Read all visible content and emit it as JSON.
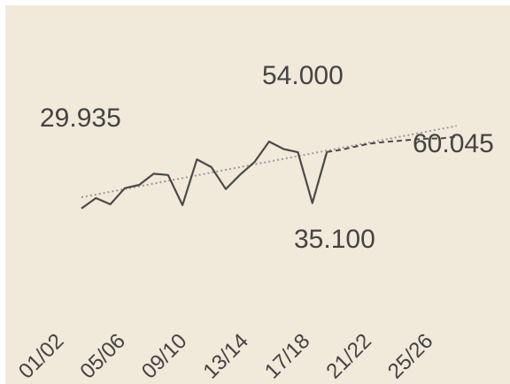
{
  "chart_data": {
    "type": "line",
    "title": "",
    "xlabel": "",
    "ylabel": "",
    "ylim": [
      20000,
      80000
    ],
    "grid": false,
    "legend": "none",
    "x_tick_labels": [
      "01/02",
      "05/06",
      "09/10",
      "13/14",
      "17/18",
      "21/22",
      "25/26"
    ],
    "series": [
      {
        "style": "solid",
        "color": "#4a4a4a",
        "x": [
          1,
          2,
          3,
          4,
          5,
          6,
          7,
          8,
          9,
          10,
          11,
          12,
          13,
          14,
          15,
          16,
          17,
          18
        ],
        "values": [
          33800,
          36300,
          34800,
          38700,
          39500,
          42200,
          41900,
          34600,
          45700,
          43800,
          38500,
          42000,
          45100,
          50000,
          48200,
          47400,
          35100,
          47400
        ]
      },
      {
        "style": "dashed",
        "color": "#4a4a4a",
        "x": [
          17,
          18,
          19,
          20,
          21,
          22,
          23,
          24,
          25,
          26,
          27
        ],
        "values": [
          35100,
          47500,
          48000,
          48800,
          49500,
          49900,
          50200,
          50500,
          50700,
          50800,
          51200
        ]
      },
      {
        "style": "dotted",
        "role": "trend",
        "color": "#9a9a9a",
        "x": [
          1,
          27
        ],
        "values": [
          36500,
          53800
        ]
      }
    ],
    "annotations": [
      {
        "text": "29.935"
      },
      {
        "text": "54.000"
      },
      {
        "text": "35.100"
      },
      {
        "text": "60.045"
      }
    ]
  }
}
